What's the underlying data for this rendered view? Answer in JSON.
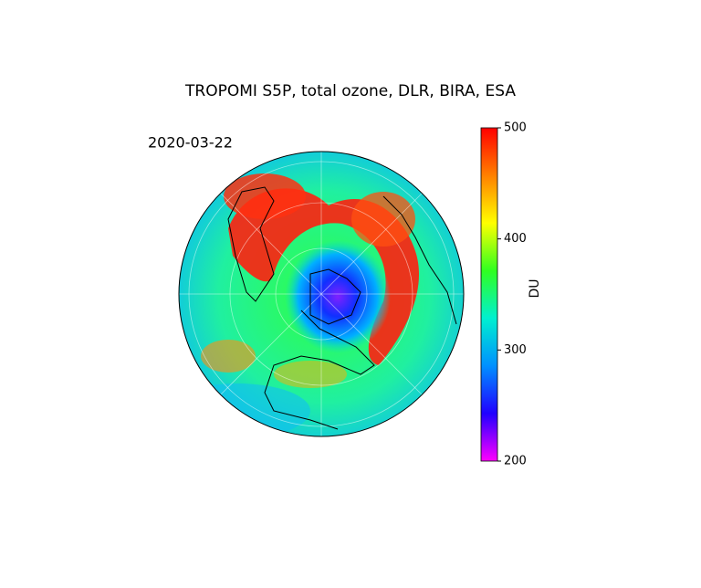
{
  "title": "TROPOMI S5P, total ozone, DLR, BIRA, ESA",
  "date": "2020-03-22",
  "colorbar": {
    "label": "DU",
    "lim": [
      200,
      500
    ],
    "ticks": [
      200,
      300,
      400,
      500
    ],
    "colors": [
      "#ff00ff",
      "#2000ff",
      "#0090ff",
      "#00f0d0",
      "#30ff20",
      "#ffff00",
      "#ff8000",
      "#ff0000"
    ]
  }
}
